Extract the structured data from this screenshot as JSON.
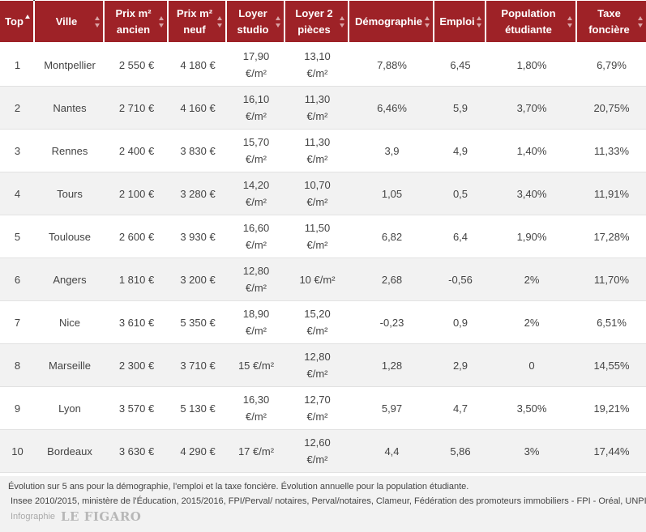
{
  "table": {
    "headers": [
      {
        "l1": "Top",
        "l2": ""
      },
      {
        "l1": "Ville",
        "l2": ""
      },
      {
        "l1": "Prix m²",
        "l2": "ancien"
      },
      {
        "l1": "Prix m²",
        "l2": "neuf"
      },
      {
        "l1": "Loyer",
        "l2": "studio"
      },
      {
        "l1": "Loyer 2",
        "l2": "pièces"
      },
      {
        "l1": "Démographie",
        "l2": ""
      },
      {
        "l1": "Emploi",
        "l2": ""
      },
      {
        "l1": "Population",
        "l2": "étudiante"
      },
      {
        "l1": "Taxe",
        "l2": "foncière"
      }
    ],
    "rows": [
      {
        "cells": [
          {
            "l1": "1",
            "l2": ""
          },
          {
            "l1": "Montpellier",
            "l2": ""
          },
          {
            "l1": "2 550 €",
            "l2": ""
          },
          {
            "l1": "4 180 €",
            "l2": ""
          },
          {
            "l1": "17,90",
            "l2": "€/m²"
          },
          {
            "l1": "13,10",
            "l2": "€/m²"
          },
          {
            "l1": "7,88%",
            "l2": ""
          },
          {
            "l1": "6,45",
            "l2": ""
          },
          {
            "l1": "1,80%",
            "l2": ""
          },
          {
            "l1": "6,79%",
            "l2": ""
          }
        ]
      },
      {
        "cells": [
          {
            "l1": "2",
            "l2": ""
          },
          {
            "l1": "Nantes",
            "l2": ""
          },
          {
            "l1": "2 710 €",
            "l2": ""
          },
          {
            "l1": "4 160 €",
            "l2": ""
          },
          {
            "l1": "16,10",
            "l2": "€/m²"
          },
          {
            "l1": "11,30",
            "l2": "€/m²"
          },
          {
            "l1": "6,46%",
            "l2": ""
          },
          {
            "l1": "5,9",
            "l2": ""
          },
          {
            "l1": "3,70%",
            "l2": ""
          },
          {
            "l1": "20,75%",
            "l2": ""
          }
        ]
      },
      {
        "cells": [
          {
            "l1": "3",
            "l2": ""
          },
          {
            "l1": "Rennes",
            "l2": ""
          },
          {
            "l1": "2 400 €",
            "l2": ""
          },
          {
            "l1": "3 830 €",
            "l2": ""
          },
          {
            "l1": "15,70",
            "l2": "€/m²"
          },
          {
            "l1": "11,30",
            "l2": "€/m²"
          },
          {
            "l1": "3,9",
            "l2": ""
          },
          {
            "l1": "4,9",
            "l2": ""
          },
          {
            "l1": "1,40%",
            "l2": ""
          },
          {
            "l1": "11,33%",
            "l2": ""
          }
        ]
      },
      {
        "cells": [
          {
            "l1": "4",
            "l2": ""
          },
          {
            "l1": "Tours",
            "l2": ""
          },
          {
            "l1": "2 100 €",
            "l2": ""
          },
          {
            "l1": "3 280 €",
            "l2": ""
          },
          {
            "l1": "14,20",
            "l2": "€/m²"
          },
          {
            "l1": "10,70",
            "l2": "€/m²"
          },
          {
            "l1": "1,05",
            "l2": ""
          },
          {
            "l1": "0,5",
            "l2": ""
          },
          {
            "l1": "3,40%",
            "l2": ""
          },
          {
            "l1": "11,91%",
            "l2": ""
          }
        ]
      },
      {
        "cells": [
          {
            "l1": "5",
            "l2": ""
          },
          {
            "l1": "Toulouse",
            "l2": ""
          },
          {
            "l1": "2 600 €",
            "l2": ""
          },
          {
            "l1": "3 930 €",
            "l2": ""
          },
          {
            "l1": "16,60",
            "l2": "€/m²"
          },
          {
            "l1": "11,50",
            "l2": "€/m²"
          },
          {
            "l1": "6,82",
            "l2": ""
          },
          {
            "l1": "6,4",
            "l2": ""
          },
          {
            "l1": "1,90%",
            "l2": ""
          },
          {
            "l1": "17,28%",
            "l2": ""
          }
        ]
      },
      {
        "cells": [
          {
            "l1": "6",
            "l2": ""
          },
          {
            "l1": "Angers",
            "l2": ""
          },
          {
            "l1": "1 810 €",
            "l2": ""
          },
          {
            "l1": "3 200 €",
            "l2": ""
          },
          {
            "l1": "12,80",
            "l2": "€/m²"
          },
          {
            "l1": "10 €/m²",
            "l2": ""
          },
          {
            "l1": "2,68",
            "l2": ""
          },
          {
            "l1": "-0,56",
            "l2": ""
          },
          {
            "l1": "2%",
            "l2": ""
          },
          {
            "l1": "11,70%",
            "l2": ""
          }
        ]
      },
      {
        "cells": [
          {
            "l1": "7",
            "l2": ""
          },
          {
            "l1": "Nice",
            "l2": ""
          },
          {
            "l1": "3 610 €",
            "l2": ""
          },
          {
            "l1": "5 350 €",
            "l2": ""
          },
          {
            "l1": "18,90",
            "l2": "€/m²"
          },
          {
            "l1": "15,20",
            "l2": "€/m²"
          },
          {
            "l1": "-0,23",
            "l2": ""
          },
          {
            "l1": "0,9",
            "l2": ""
          },
          {
            "l1": "2%",
            "l2": ""
          },
          {
            "l1": "6,51%",
            "l2": ""
          }
        ]
      },
      {
        "cells": [
          {
            "l1": "8",
            "l2": ""
          },
          {
            "l1": "Marseille",
            "l2": ""
          },
          {
            "l1": "2 300 €",
            "l2": ""
          },
          {
            "l1": "3 710 €",
            "l2": ""
          },
          {
            "l1": "15 €/m²",
            "l2": ""
          },
          {
            "l1": "12,80",
            "l2": "€/m²"
          },
          {
            "l1": "1,28",
            "l2": ""
          },
          {
            "l1": "2,9",
            "l2": ""
          },
          {
            "l1": "0",
            "l2": ""
          },
          {
            "l1": "14,55%",
            "l2": ""
          }
        ]
      },
      {
        "cells": [
          {
            "l1": "9",
            "l2": ""
          },
          {
            "l1": "Lyon",
            "l2": ""
          },
          {
            "l1": "3 570 €",
            "l2": ""
          },
          {
            "l1": "5 130 €",
            "l2": ""
          },
          {
            "l1": "16,30",
            "l2": "€/m²"
          },
          {
            "l1": "12,70",
            "l2": "€/m²"
          },
          {
            "l1": "5,97",
            "l2": ""
          },
          {
            "l1": "4,7",
            "l2": ""
          },
          {
            "l1": "3,50%",
            "l2": ""
          },
          {
            "l1": "19,21%",
            "l2": ""
          }
        ]
      },
      {
        "cells": [
          {
            "l1": "10",
            "l2": ""
          },
          {
            "l1": "Bordeaux",
            "l2": ""
          },
          {
            "l1": "3 630 €",
            "l2": ""
          },
          {
            "l1": "4 290 €",
            "l2": ""
          },
          {
            "l1": "17 €/m²",
            "l2": ""
          },
          {
            "l1": "12,60",
            "l2": "€/m²"
          },
          {
            "l1": "4,4",
            "l2": ""
          },
          {
            "l1": "5,86",
            "l2": ""
          },
          {
            "l1": "3%",
            "l2": ""
          },
          {
            "l1": "17,44%",
            "l2": ""
          }
        ]
      }
    ]
  },
  "footer": {
    "note": "Évolution sur 5 ans pour la démographie, l'emploi et la taxe foncière. Évolution annuelle pour la population étudiante.",
    "sources": "Insee 2010/2015, ministère de l'Éducation, 2015/2016, FPI/Perval/ notaires, Perval/notaires, Clameur, Fédération des promoteurs immobiliers - FPI - Oréal, UNPI",
    "credit": "Infographie",
    "logo": "LE FIGARO"
  },
  "colors": {
    "header_bg": "#9e2227",
    "row_alt_bg": "#f2f2f2",
    "footer_bg": "#f2f2f2"
  },
  "icons": {
    "sort": "sort-arrows-icon",
    "sort_active": "sort-ascending-icon"
  },
  "sort": {
    "column": "Top",
    "direction": "ascending"
  }
}
